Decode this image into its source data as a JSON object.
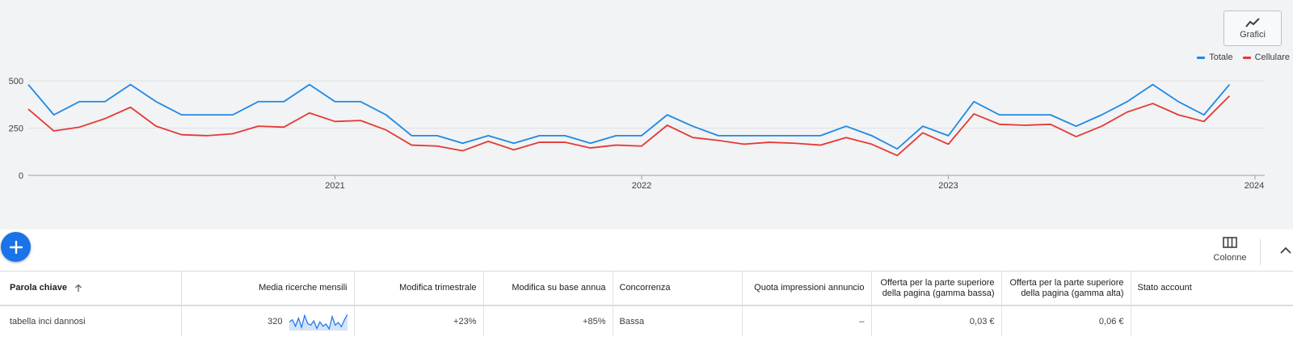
{
  "chart_toggle_label": "Grafici",
  "legend": [
    {
      "label": "Totale",
      "color": "#1e88e5"
    },
    {
      "label": "Cellulare",
      "color": "#e53935"
    }
  ],
  "chart_data": {
    "type": "line",
    "x_start": "2020-01",
    "x_end": "2024-01",
    "x_ticks": [
      "2021",
      "2022",
      "2023",
      "2024"
    ],
    "y_ticks": [
      "0",
      "250",
      "500"
    ],
    "ylim": [
      0,
      500
    ],
    "grid": true,
    "legend_position": "top-right",
    "series": [
      {
        "name": "Totale",
        "color": "#1e88e5",
        "values": [
          480,
          320,
          390,
          390,
          480,
          390,
          320,
          320,
          320,
          390,
          390,
          480,
          390,
          390,
          320,
          210,
          210,
          170,
          210,
          170,
          210,
          210,
          170,
          210,
          210,
          320,
          260,
          210,
          210,
          210,
          210,
          210,
          260,
          210,
          140,
          260,
          210,
          390,
          320,
          320,
          320,
          260,
          320,
          390,
          480,
          390,
          320,
          480
        ]
      },
      {
        "name": "Cellulare",
        "color": "#e53935",
        "values": [
          350,
          235,
          255,
          300,
          360,
          260,
          215,
          210,
          220,
          260,
          255,
          330,
          285,
          290,
          240,
          160,
          155,
          130,
          180,
          135,
          175,
          175,
          145,
          160,
          155,
          265,
          200,
          185,
          165,
          175,
          170,
          160,
          200,
          165,
          105,
          225,
          165,
          325,
          270,
          265,
          270,
          205,
          260,
          335,
          380,
          320,
          285,
          420
        ]
      }
    ]
  },
  "toolbar": {
    "columns_label": "Colonne"
  },
  "table": {
    "headers": {
      "keyword": "Parola chiave",
      "avg_searches": "Media ricerche mensili",
      "three_month": "Modifica trimestrale",
      "yoy": "Modifica su base annua",
      "competition": "Concorrenza",
      "impr_share": "Quota impressioni annuncio",
      "bid_low": "Offerta per la parte superiore della pagina (gamma bassa)",
      "bid_high": "Offerta per la parte superiore della pagina (gamma alta)",
      "status": "Stato account"
    },
    "rows": [
      {
        "keyword": "tabella inci dannosi",
        "avg_searches": "320",
        "sparkline": [
          48,
          52,
          40,
          55,
          38,
          60,
          45,
          42,
          50,
          36,
          48,
          40,
          44,
          35,
          58,
          42,
          47,
          39,
          52,
          62
        ],
        "three_month": "+23%",
        "yoy": "+85%",
        "competition": "Bassa",
        "impr_share": "–",
        "bid_low": "0,03 €",
        "bid_high": "0,06 €",
        "status": ""
      }
    ]
  }
}
